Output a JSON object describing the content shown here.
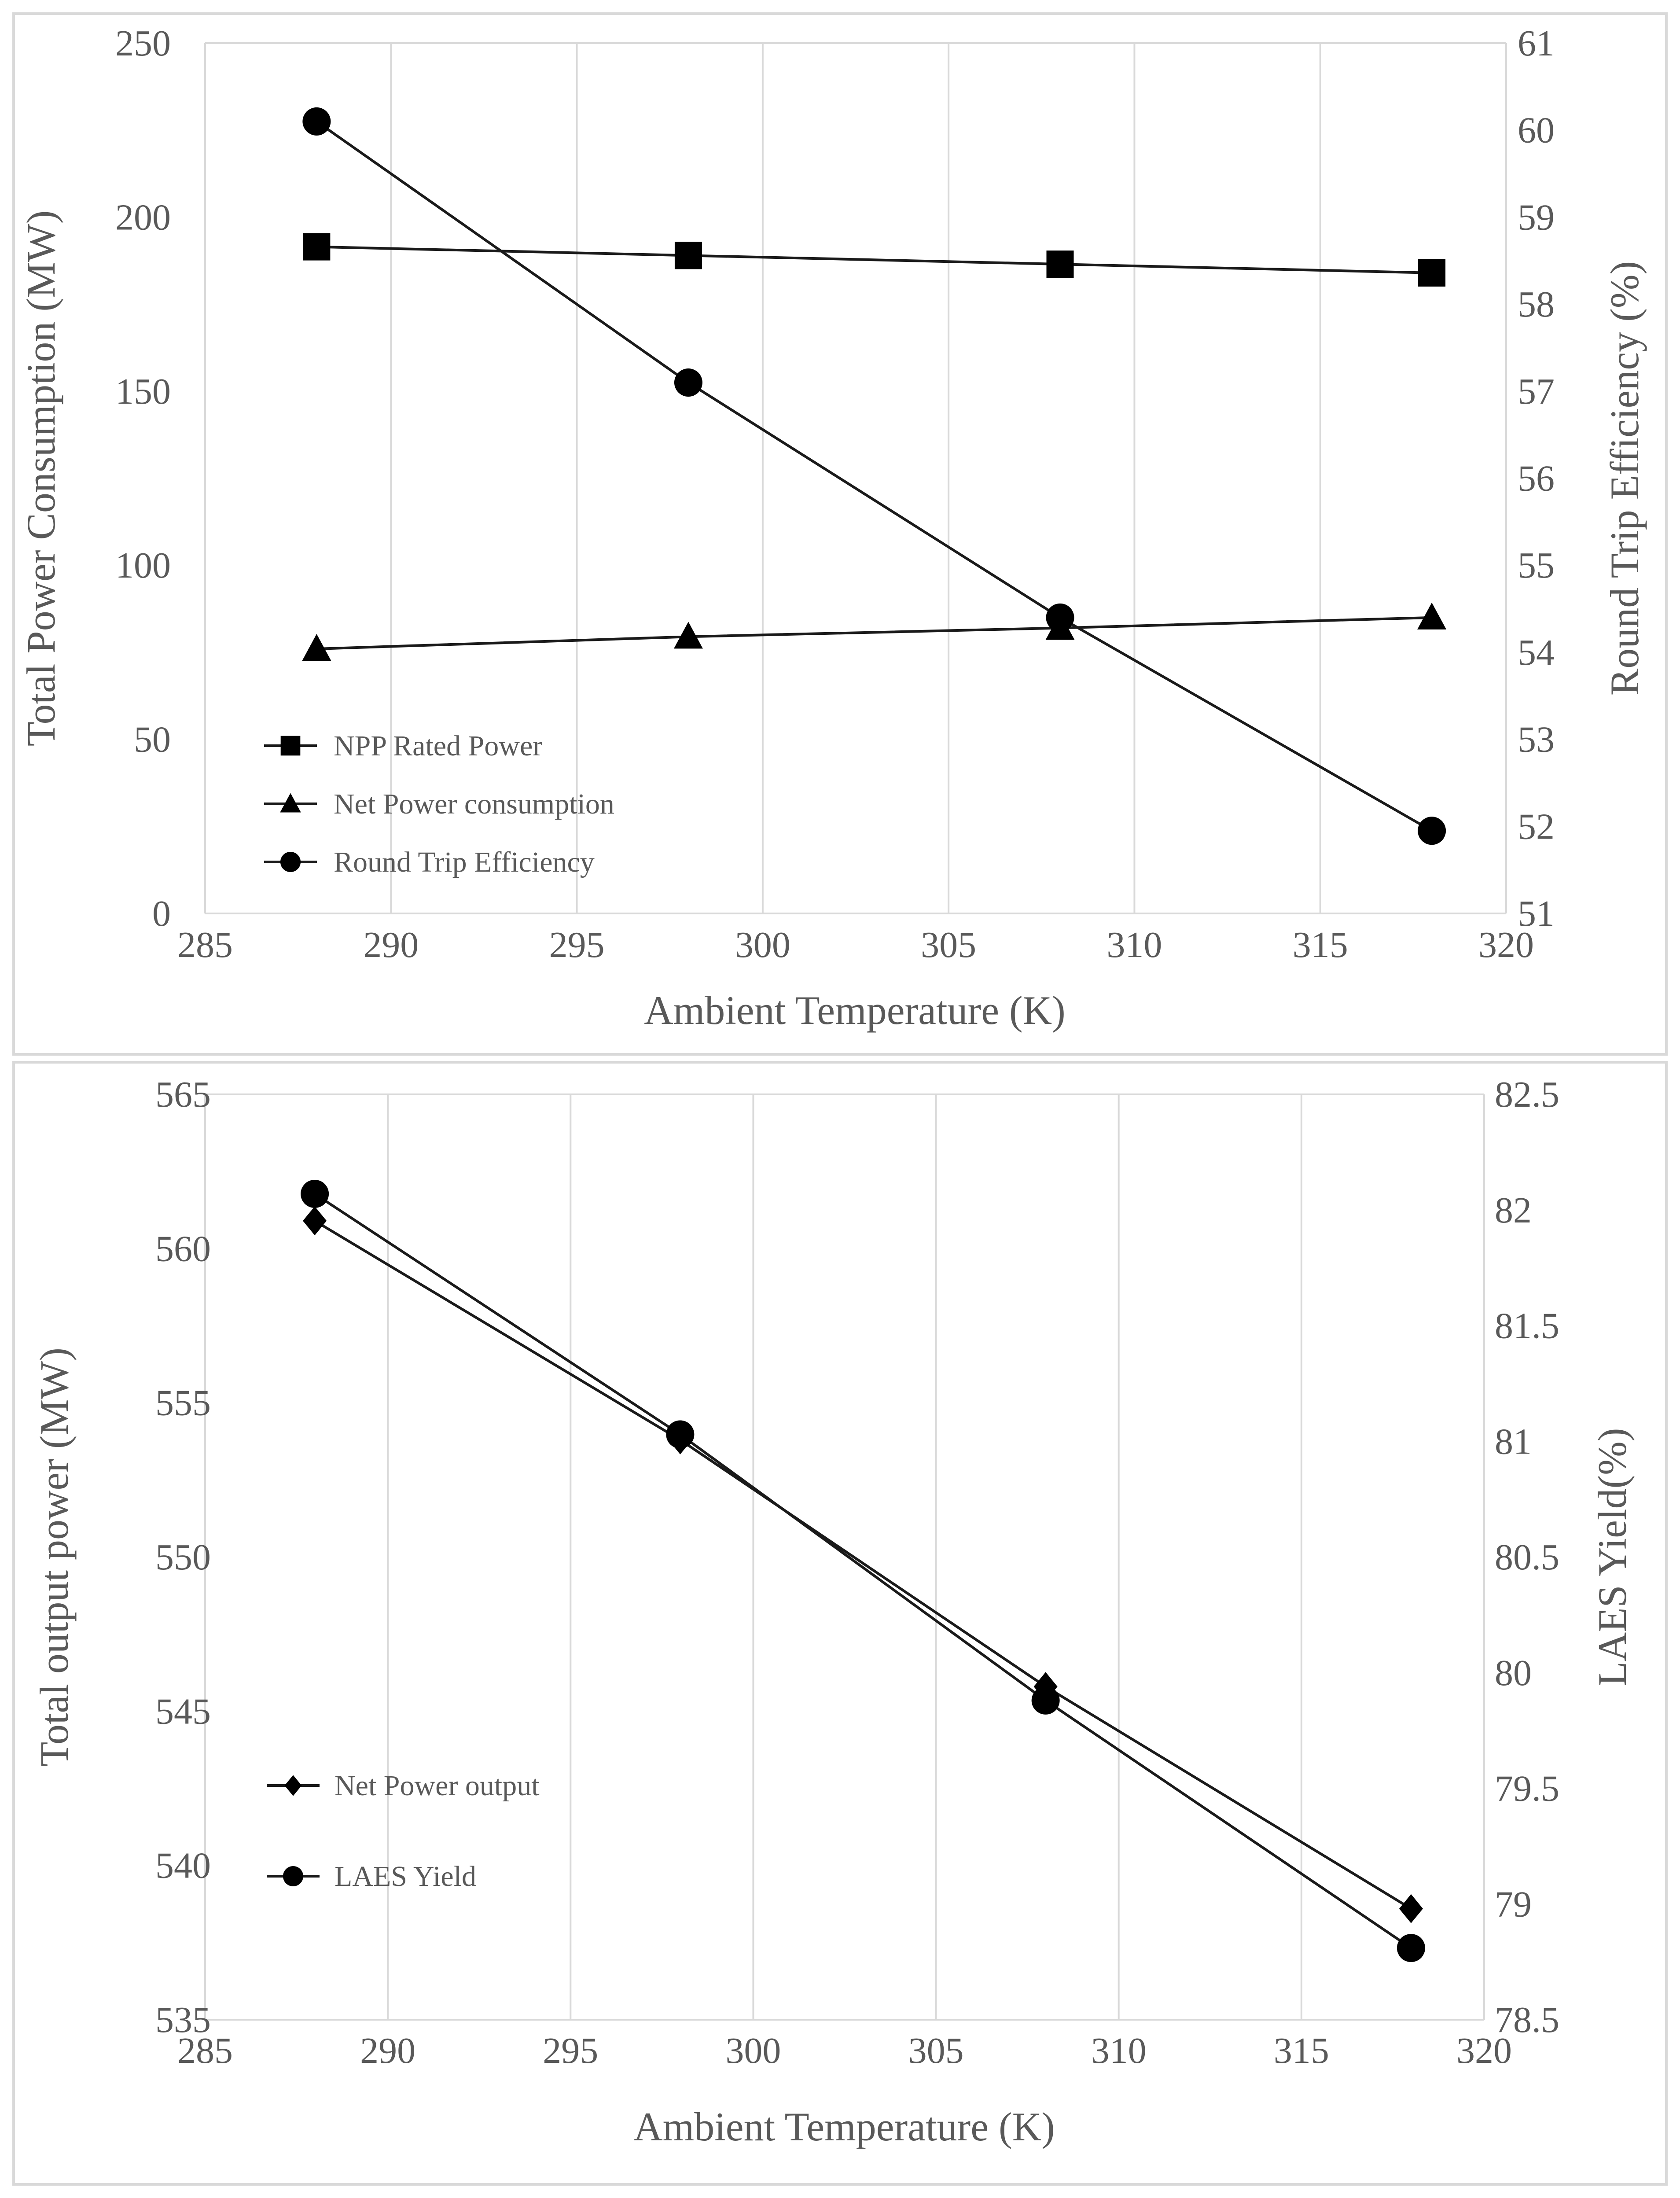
{
  "charts": [
    {
      "type": "line",
      "x": [
        288,
        298,
        308,
        318
      ],
      "xlabel": "Ambient Temperature  (K)",
      "xlim": [
        285,
        320
      ],
      "xticks": [
        285,
        290,
        295,
        300,
        305,
        310,
        315,
        320
      ],
      "ylabel_left": "Total  Power Consumption (MW)",
      "ylim_left": [
        0,
        250
      ],
      "yticks_left": [
        0,
        50,
        100,
        150,
        200,
        250
      ],
      "ylabel_right": "Round Trip Efficiency  (%)",
      "ylim_right": [
        51,
        61
      ],
      "yticks_right": [
        51,
        52,
        53,
        54,
        55,
        56,
        57,
        58,
        59,
        60,
        61
      ],
      "grid": "vertical",
      "legend_position": "lower-left",
      "series": [
        {
          "name": "NPP Rated Power",
          "axis": "left",
          "marker": "square",
          "values": [
            191.5,
            189,
            186.5,
            184
          ]
        },
        {
          "name": "Net Power consumption",
          "axis": "left",
          "marker": "triangle",
          "values": [
            76,
            79.5,
            82,
            85
          ]
        },
        {
          "name": "Round Trip Efficiency",
          "axis": "right",
          "marker": "circle",
          "values": [
            60.1,
            57.1,
            54.4,
            51.95
          ]
        }
      ]
    },
    {
      "type": "line",
      "x": [
        288,
        298,
        308,
        318
      ],
      "xlabel": "Ambient Temperature  (K)",
      "xlim": [
        285,
        320
      ],
      "xticks": [
        285,
        290,
        295,
        300,
        305,
        310,
        315,
        320
      ],
      "ylabel_left": "Total  output  power  (MW)",
      "ylim_left": [
        535,
        565
      ],
      "yticks_left": [
        535,
        540,
        545,
        550,
        555,
        560,
        565
      ],
      "ylabel_right": "LAES Yield(%)",
      "ylim_right": [
        78.5,
        82.5
      ],
      "yticks_right": [
        "78.5",
        "79",
        "79.5",
        "80",
        "80.5",
        "81",
        "81.5",
        "82",
        "82.5"
      ],
      "grid": "vertical",
      "legend_position": "lower-left",
      "series": [
        {
          "name": "Net Power output",
          "axis": "left",
          "marker": "diamond",
          "values": [
            560.9,
            553.8,
            545.8,
            538.6
          ]
        },
        {
          "name": "LAES Yield",
          "axis": "right",
          "marker": "circle",
          "values": [
            82.07,
            81.03,
            79.88,
            78.81
          ]
        }
      ]
    }
  ],
  "chart_data": [
    {
      "type": "line",
      "title": "",
      "xlabel": "Ambient Temperature  (K)",
      "ylabel": "Total  Power Consumption (MW)",
      "y2label": "Round Trip Efficiency  (%)",
      "x": [
        288,
        298,
        308,
        318
      ],
      "series": [
        {
          "name": "NPP Rated Power",
          "values": [
            191.5,
            189,
            186.5,
            184
          ]
        },
        {
          "name": "Net Power consumption",
          "values": [
            76,
            79.5,
            82,
            85
          ]
        },
        {
          "name": "Round Trip Efficiency",
          "values": [
            60.1,
            57.1,
            54.4,
            51.95
          ]
        }
      ],
      "xlim": [
        285,
        320
      ],
      "ylim": [
        0,
        250
      ],
      "y2lim": [
        51,
        61
      ]
    },
    {
      "type": "line",
      "title": "",
      "xlabel": "Ambient Temperature  (K)",
      "ylabel": "Total  output  power  (MW)",
      "y2label": "LAES Yield(%)",
      "x": [
        288,
        298,
        308,
        318
      ],
      "series": [
        {
          "name": "Net Power output",
          "values": [
            560.9,
            553.8,
            545.8,
            538.6
          ]
        },
        {
          "name": "LAES Yield",
          "values": [
            82.07,
            81.03,
            79.88,
            78.81
          ]
        }
      ],
      "xlim": [
        285,
        320
      ],
      "ylim": [
        535,
        565
      ],
      "y2lim": [
        78.5,
        82.5
      ]
    }
  ]
}
